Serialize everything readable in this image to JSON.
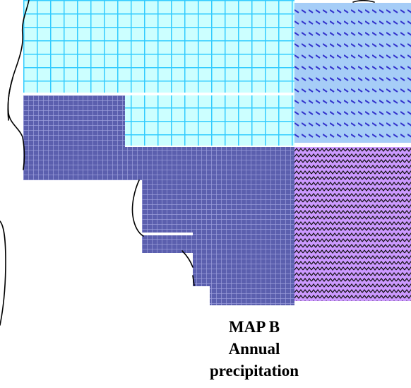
{
  "map": {
    "caption": {
      "title": "MAP B",
      "line1": "Annual",
      "line2": "precipitation"
    },
    "regions": [
      {
        "name": "light-cyan-grid",
        "fill": "#ccffff",
        "pattern_color": "#33ccff",
        "pattern": "large-grid"
      },
      {
        "name": "light-blue-diagonal",
        "fill": "#99ccff",
        "pattern_color": "#3333cc",
        "pattern": "diagonal-dashes"
      },
      {
        "name": "dark-blue-small-grid",
        "fill": "#5555aa",
        "pattern_color": "#9999dd",
        "pattern": "small-grid"
      },
      {
        "name": "lavender-zigzag",
        "fill": "#cc99ff",
        "pattern_color": "#000000",
        "pattern": "zigzag"
      }
    ],
    "outline_color": "#000000"
  }
}
